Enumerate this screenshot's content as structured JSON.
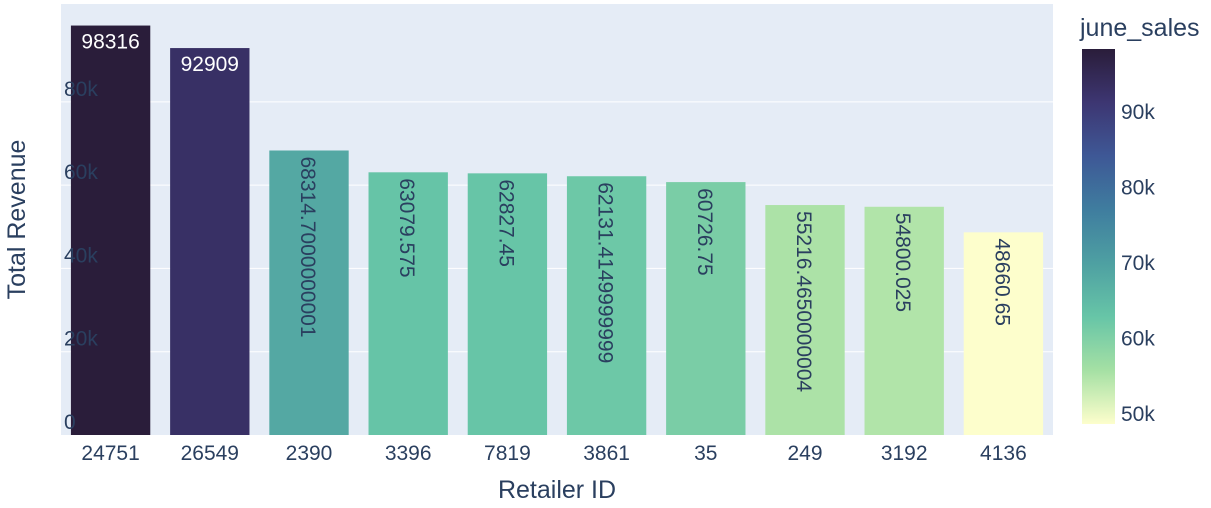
{
  "chart_data": {
    "type": "bar",
    "xlabel": "Retailer ID",
    "ylabel": "Total Revenue",
    "categories": [
      "24751",
      "26549",
      "2390",
      "3396",
      "7819",
      "3861",
      "35",
      "249",
      "3192",
      "4136"
    ],
    "values": [
      98316,
      92909,
      68314.7000000001,
      63079.575,
      62827.45,
      62131.4149999999,
      60726.75,
      55216.4650000004,
      54800.025,
      48660.65
    ],
    "value_labels": [
      "98316",
      "92909",
      "68314.7000000001",
      "63079.575",
      "62827.45",
      "62131.4149999999",
      "60726.75",
      "55216.4650000004",
      "54800.025",
      "48660.65"
    ],
    "y_ticks": [
      0,
      20000,
      40000,
      60000,
      80000
    ],
    "y_tick_labels": [
      "0",
      "20k",
      "40k",
      "60k",
      "80k"
    ],
    "ylim": [
      0,
      103490
    ],
    "grid": true,
    "colorbar": {
      "title": "june_sales",
      "min": 48660.65,
      "max": 98316,
      "ticks": [
        50000,
        60000,
        70000,
        80000,
        90000
      ],
      "tick_labels": [
        "50k",
        "60k",
        "70k",
        "80k",
        "90k"
      ],
      "colorscale": [
        "#fdfecc",
        "#a5e0a4",
        "#67c5a7",
        "#4ea0a2",
        "#3f7d9f",
        "#3e5896",
        "#3d3672",
        "#2a1d3a"
      ]
    },
    "colors": {
      "plot_background": "#e5ecf6",
      "gridline": "#ffffff",
      "axis_text": "#2a3f5f"
    }
  }
}
